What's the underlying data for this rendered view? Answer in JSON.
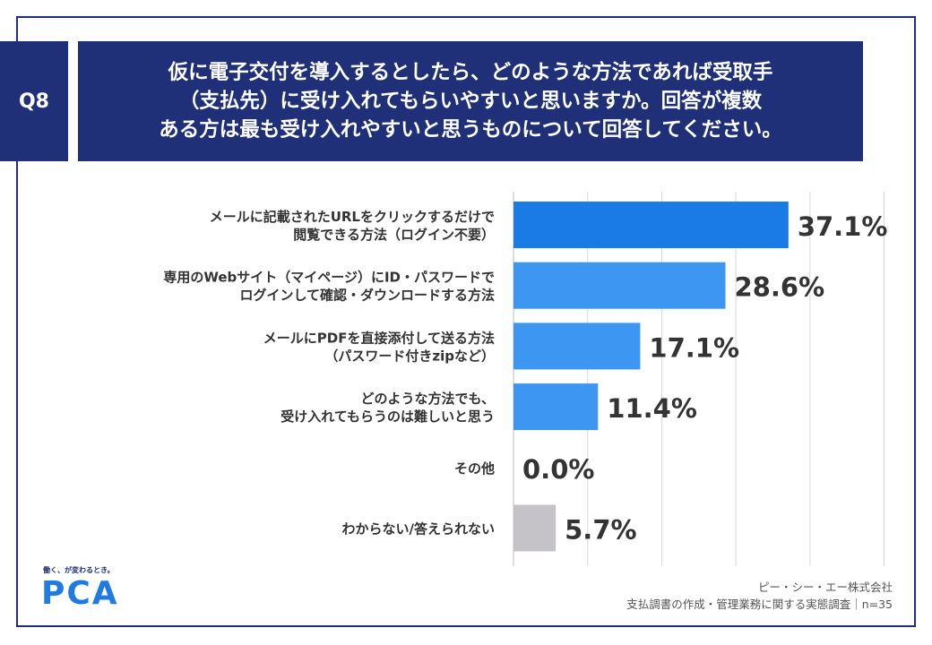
{
  "header": {
    "question_id": "Q8",
    "question_lines": [
      "仮に電子交付を導入するとしたら、どのような方法であれば受取手",
      "（支払先）に受け入れてもらいやすいと思いますか。回答が複数",
      "ある方は最も受け入れやすいと思うものについて回答してください。"
    ]
  },
  "footer": {
    "logo_tagline": "働く、が変わるとき。",
    "logo_text": "PCA",
    "company": "ピー・シー・エー株式会社",
    "survey": "支払調書の作成・管理業務に関する実態調査｜n=35"
  },
  "colors": {
    "header_bg": "#1f2f78",
    "bar_top": "#1a7be6",
    "bar_other": "#3d96f2",
    "bar_unknown": "#c5c2c8",
    "grid": "#d9d9d9",
    "logo": "#1f7be0"
  },
  "chart_data": {
    "type": "bar",
    "orientation": "horizontal",
    "categories": [
      [
        "メールに記載されたURLをクリックするだけで",
        "閲覧できる方法（ログイン不要）"
      ],
      [
        "専用のWebサイト（マイページ）にID・パスワードで",
        "ログインして確認・ダウンロードする方法"
      ],
      [
        "メールにPDFを直接添付して送る方法",
        "（パスワード付きzipなど）"
      ],
      [
        "どのような方法でも、",
        "受け入れてもらうのは難しいと思う"
      ],
      [
        "その他"
      ],
      [
        "わからない/答えられない"
      ]
    ],
    "values": [
      37.1,
      28.6,
      17.1,
      11.4,
      0.0,
      5.7
    ],
    "value_labels": [
      "37.1%",
      "28.6%",
      "17.1%",
      "11.4%",
      "0.0%",
      "5.7%"
    ],
    "xlim": [
      0,
      50
    ],
    "grid": true,
    "legend": "none"
  }
}
